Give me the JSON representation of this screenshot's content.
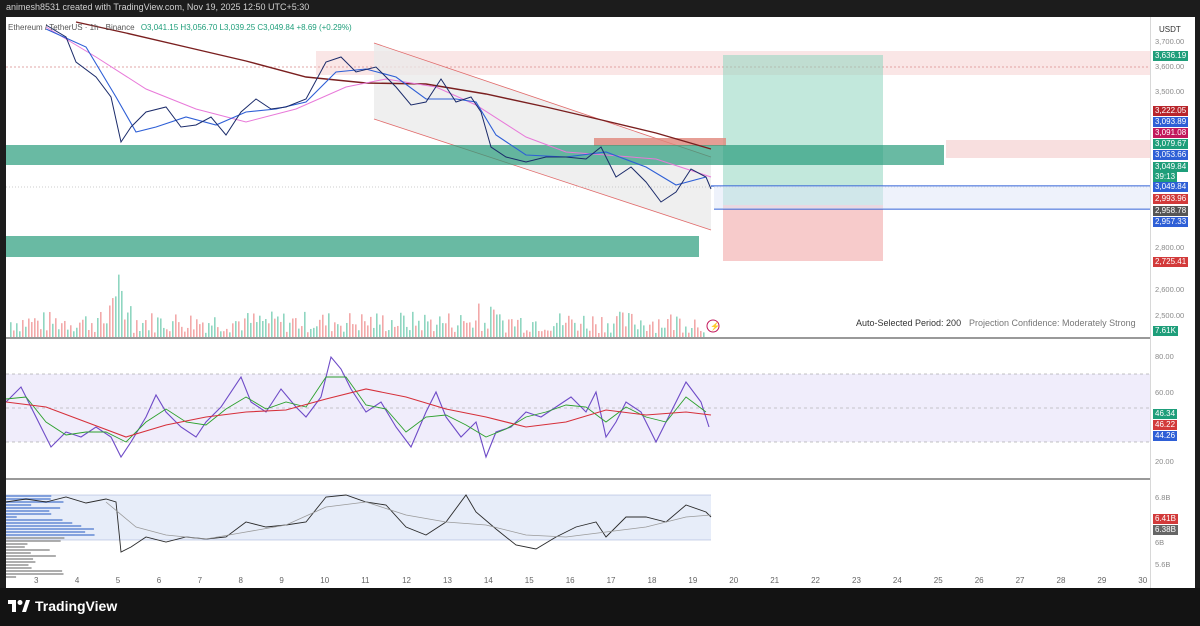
{
  "header": {
    "text": "animesh8531 created with TradingView.com, Nov 19, 2025 12:50 UTC+5:30"
  },
  "legend": {
    "symbol": "Ethereum / TetherUS · 1h · Binance",
    "ohlc": "O3,041.15 H3,056.70 L3,039.25 C3,049.84 +8.69 (+0.29%)"
  },
  "currency": "USDT",
  "price_axis": {
    "ticks": [
      "3,700.00",
      "3,600.00",
      "3,500.00",
      "2,800.00",
      "2,600.00",
      "2,500.00"
    ]
  },
  "price_badges": [
    {
      "label": "3,636.19",
      "color": "#1e9e7a"
    },
    {
      "label": "3,222.05",
      "color": "#b8252b"
    },
    {
      "label": "3,093.89",
      "color": "#2e5fd6"
    },
    {
      "label": "3,091.08",
      "color": "#c2185b"
    },
    {
      "label": "3,079.67",
      "color": "#1e9e7a"
    },
    {
      "label": "3,053.66",
      "color": "#2e5fd6"
    },
    {
      "label": "3,049.84",
      "color": "#1e9e7a"
    },
    {
      "label": "39:13",
      "color": "#1e9e7a"
    },
    {
      "label": "3,049.84",
      "color": "#2e5fd6"
    },
    {
      "label": "2,993.96",
      "color": "#d23a3a"
    },
    {
      "label": "2,958.78",
      "color": "#555555"
    },
    {
      "label": "2,957.33",
      "color": "#2e5fd6"
    },
    {
      "label": "2,725.41",
      "color": "#d23a3a"
    },
    {
      "label": "7.61K",
      "color": "#1e9e7a"
    }
  ],
  "projection": {
    "period": "Auto-Selected Period: 200",
    "confidence": "Projection Confidence: Moderately Strong"
  },
  "rsi_axis": {
    "ticks": [
      "80.00",
      "60.00",
      "20.00"
    ],
    "badges": [
      {
        "label": "46.34",
        "color": "#1e9e7a"
      },
      {
        "label": "46.22",
        "color": "#d23a3a"
      },
      {
        "label": "44.26",
        "color": "#2e5fd6"
      }
    ]
  },
  "lower_axis": {
    "ticks": [
      "6.8B",
      "6B",
      "5.6B"
    ],
    "badges": [
      {
        "label": "6.41B",
        "color": "#d23a3a"
      },
      {
        "label": "6.38B",
        "color": "#666666"
      }
    ]
  },
  "time_axis": [
    "3",
    "4",
    "5",
    "6",
    "7",
    "8",
    "9",
    "10",
    "11",
    "12",
    "13",
    "14",
    "15",
    "16",
    "17",
    "18",
    "19",
    "20",
    "21",
    "22",
    "23",
    "24",
    "25",
    "26",
    "27",
    "28",
    "29",
    "30"
  ],
  "branding": {
    "logo_text": "TradingView",
    "logo_icon": "tradingview-logo-icon"
  }
}
